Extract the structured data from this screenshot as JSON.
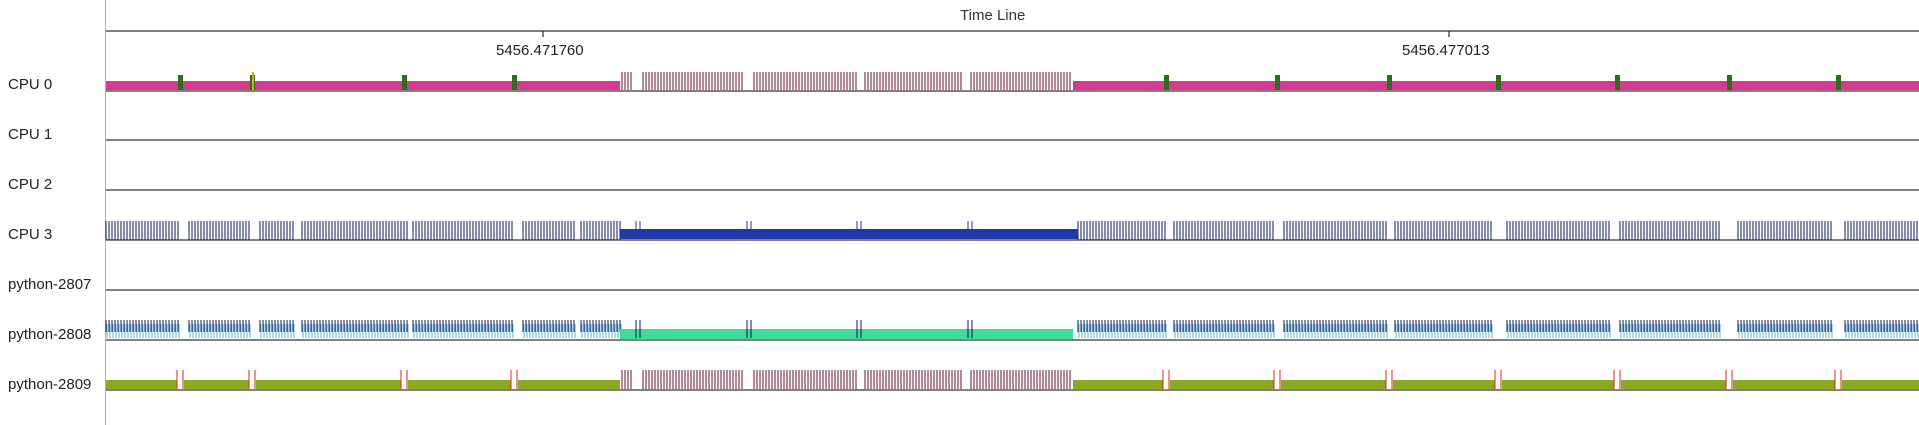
{
  "timeline": {
    "title": "Time Line",
    "ticks": [
      "5456.471760",
      "5456.477013"
    ]
  },
  "rows": [
    {
      "label": "CPU 0",
      "color": "#d63a90",
      "activity": "busy-with-periodic-events"
    },
    {
      "label": "CPU 1",
      "color": "#000000",
      "activity": "idle"
    },
    {
      "label": "CPU 2",
      "color": "#000000",
      "activity": "idle"
    },
    {
      "label": "CPU 3",
      "color": "#1f3aa8",
      "activity": "dense-events-with-busy-span"
    },
    {
      "label": "python-2807",
      "color": "#000000",
      "activity": "idle"
    },
    {
      "label": "python-2808",
      "color": "#3ddc99",
      "activity": "dense-events-with-busy-span"
    },
    {
      "label": "python-2809",
      "color": "#8aa820",
      "activity": "busy-with-periodic-events"
    }
  ],
  "colors": {
    "cpu0_bar": "#d63a90",
    "cpu0_marker": "#2e6b1f",
    "cpu3_ticks": "#0d1a5c",
    "cpu3_bar": "#1f3aa8",
    "p2808_ticks": "#0d1a5c",
    "p2808_inner": "#5ab4d6",
    "p2808_bar": "#3ddc99",
    "p2809_bar": "#8aa820",
    "p2809_marker": "#e02020",
    "dense_ticks": "#6b0f2a",
    "axis": "#000000"
  }
}
